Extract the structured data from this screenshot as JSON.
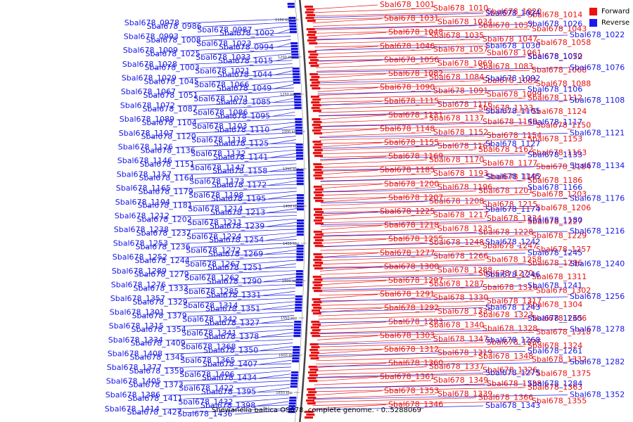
{
  "title": "Shewanella baltica OS678, complete genome. - 0..5288069",
  "legend": [
    {
      "label": "Forward",
      "color": "#ee1111"
    },
    {
      "label": "Reverse",
      "color": "#1a1aee"
    }
  ],
  "colors": {
    "forward": "#e81010",
    "reverse": "#1616e6",
    "axis": "#555555"
  },
  "ticks": [
    "1150 kbp",
    "1200 kbp",
    "1250 kbp",
    "1300 kbp",
    "1350 kbp",
    "1400 kbp",
    "1450 kbp",
    "1500 kbp",
    "1550 kbp",
    "1600 kbp",
    "1650 kbp"
  ],
  "genes": {
    "forward": [
      "Sbal678_1001",
      "Sbal678_1010",
      "Sbal678_1020",
      "Sbal678_1014",
      "Sbal678_1031",
      "Sbal678_1034",
      "Sbal678_1037",
      "Sbal678_1043",
      "Sbal678_1048",
      "Sbal678_1035",
      "Sbal678_1047",
      "Sbal678_1058",
      "Sbal678_1046",
      "Sbal678_1057",
      "Sbal678_1061",
      "Sbal678_1070",
      "Sbal678_1056",
      "Sbal678_1069",
      "Sbal678_1083",
      "Sbal678_1068",
      "Sbal678_1082",
      "Sbal678_1084",
      "Sbal678_1081",
      "Sbal678_1088",
      "Sbal678_1090",
      "Sbal678_1091",
      "Sbal678_1099",
      "Sbal678_1112",
      "Sbal678_1115",
      "Sbal678_1116",
      "Sbal678_1123",
      "Sbal678_1124",
      "Sbal678_1131",
      "Sbal678_1137",
      "Sbal678_1149",
      "Sbal678_1150",
      "Sbal678_1148",
      "Sbal678_1152",
      "Sbal678_1154",
      "Sbal678_1153",
      "Sbal678_1155",
      "Sbal678_1161",
      "Sbal678_1162",
      "Sbal678_1163",
      "Sbal678_1169",
      "Sbal678_1170",
      "Sbal678_1177",
      "Sbal678_1184",
      "Sbal678_1185",
      "Sbal678_1193",
      "Sbal678_1192",
      "Sbal678_1186",
      "Sbal678_1200",
      "Sbal678_1196",
      "Sbal678_1201",
      "Sbal678_1203",
      "Sbal678_1207",
      "Sbal678_1208",
      "Sbal678_1215",
      "Sbal678_1206",
      "Sbal678_1225",
      "Sbal678_1217",
      "Sbal678_1234",
      "Sbal678_1227",
      "Sbal678_1218",
      "Sbal678_1235",
      "Sbal678_1228",
      "Sbal678_1229",
      "Sbal678_1255",
      "Sbal678_1248",
      "Sbal678_1247",
      "Sbal678_1257",
      "Sbal678_1277",
      "Sbal678_1266",
      "Sbal678_1258",
      "Sbal678_1286",
      "Sbal678_1300",
      "Sbal678_1288",
      "Sbal678_1270",
      "Sbal678_1311",
      "Sbal678_1297",
      "Sbal678_1287",
      "Sbal678_1316",
      "Sbal678_1302",
      "Sbal678_1291",
      "Sbal678_1330",
      "Sbal678_1317",
      "Sbal678_1304",
      "Sbal678_1292",
      "Sbal678_1335",
      "Sbal678_1323",
      "Sbal678_1306",
      "Sbal678_1293",
      "Sbal678_1340",
      "Sbal678_1328",
      "Sbal678_1318",
      "Sbal678_1303",
      "Sbal678_1347",
      "Sbal678_1336",
      "Sbal678_1324",
      "Sbal678_1312",
      "Sbal678_1319",
      "Sbal678_1348",
      "Sbal678_1332",
      "Sbal678_1360",
      "Sbal678_1337",
      "Sbal678_1326",
      "Sbal678_1375",
      "Sbal678_1361",
      "Sbal678_1349",
      "Sbal678_1338",
      "Sbal678_1363",
      "Sbal678_1353",
      "Sbal678_1339",
      "Sbal678_1366",
      "Sbal678_1355",
      "Sbal678_1346"
    ],
    "reverse_right": [
      "Sbal678_1024",
      "Sbal678_1026",
      "Sbal678_1022",
      "Sbal678_1030",
      "Sbal678_1052",
      "Sbal678_1076",
      "Sbal678_1092",
      "Sbal678_1106",
      "Sbal678_1108",
      "Sbal678_1105",
      "Sbal678_1117",
      "Sbal678_1121",
      "Sbal678_1127",
      "Sbal678_1133",
      "Sbal678_1134",
      "Sbal678_1145",
      "Sbal678_1166",
      "Sbal678_1176",
      "Sbal678_1174",
      "Sbal678_1180",
      "Sbal678_1216",
      "Sbal678_1242",
      "Sbal678_1245",
      "Sbal678_1240",
      "Sbal678_1246",
      "Sbal678_1241",
      "Sbal678_1256",
      "Sbal678_1243",
      "Sbal678_1265",
      "Sbal678_1278",
      "Sbal678_1268",
      "Sbal678_1261",
      "Sbal678_1282",
      "Sbal678_1275",
      "Sbal678_1284",
      "Sbal678_1352",
      "Sbal678_1343"
    ],
    "reverse": [
      "Sbal678_0978",
      "Sbal678_0986",
      "Sbal678_0987",
      "Sbal678_1002",
      "Sbal678_0993",
      "Sbal678_1008",
      "Sbal678_1023",
      "Sbal678_0994",
      "Sbal678_1009",
      "Sbal678_1025",
      "Sbal678_1033",
      "Sbal678_1015",
      "Sbal678_1028",
      "Sbal678_1003",
      "Sbal678_1021",
      "Sbal678_1044",
      "Sbal678_1029",
      "Sbal678_1045",
      "Sbal678_1066",
      "Sbal678_1049",
      "Sbal678_1067",
      "Sbal678_1051",
      "Sbal678_1071",
      "Sbal678_1085",
      "Sbal678_1072",
      "Sbal678_1087",
      "Sbal678_1086",
      "Sbal678_1095",
      "Sbal678_1089",
      "Sbal678_1104",
      "Sbal678_1103",
      "Sbal678_1110",
      "Sbal678_1107",
      "Sbal678_1120",
      "Sbal678_1118",
      "Sbal678_1125",
      "Sbal678_1126",
      "Sbal678_1136",
      "Sbal678_1132",
      "Sbal678_1141",
      "Sbal678_1146",
      "Sbal678_1151",
      "Sbal678_1147",
      "Sbal678_1158",
      "Sbal678_1157",
      "Sbal678_1164",
      "Sbal678_1173",
      "Sbal678_1172",
      "Sbal678_1165",
      "Sbal678_1179",
      "Sbal678_1198",
      "Sbal678_1195",
      "Sbal678_1194",
      "Sbal678_1181",
      "Sbal678_1214",
      "Sbal678_1213",
      "Sbal678_1212",
      "Sbal678_1202",
      "Sbal678_1211",
      "Sbal678_1239",
      "Sbal678_1238",
      "Sbal678_1237",
      "Sbal678_1224",
      "Sbal678_1254",
      "Sbal678_1253",
      "Sbal678_1236",
      "Sbal678_1272",
      "Sbal678_1269",
      "Sbal678_1252",
      "Sbal678_1244",
      "Sbal678_1267",
      "Sbal678_1251",
      "Sbal678_1289",
      "Sbal678_1279",
      "Sbal678_1262",
      "Sbal678_1290",
      "Sbal678_1276",
      "Sbal678_1333",
      "Sbal678_1285",
      "Sbal678_1331",
      "Sbal678_1357",
      "Sbal678_1329",
      "Sbal678_1314",
      "Sbal678_1351",
      "Sbal678_1301",
      "Sbal678_1379",
      "Sbal678_1342",
      "Sbal678_1327",
      "Sbal678_1315",
      "Sbal678_1354",
      "Sbal678_1341",
      "Sbal678_1378",
      "Sbal678_1334",
      "Sbal678_1409",
      "Sbal678_1368",
      "Sbal678_1350",
      "Sbal678_1408",
      "Sbal678_1345",
      "Sbal678_1365",
      "Sbal678_1407",
      "Sbal678_1377",
      "Sbal678_1359",
      "Sbal678_1406",
      "Sbal678_1434",
      "Sbal678_1405",
      "Sbal678_1373",
      "Sbal678_1422",
      "Sbal678_1395",
      "Sbal678_1386",
      "Sbal678_1411",
      "Sbal678_1432",
      "Sbal678_1398",
      "Sbal678_1414",
      "Sbal678_1427",
      "Sbal678_1436"
    ]
  }
}
